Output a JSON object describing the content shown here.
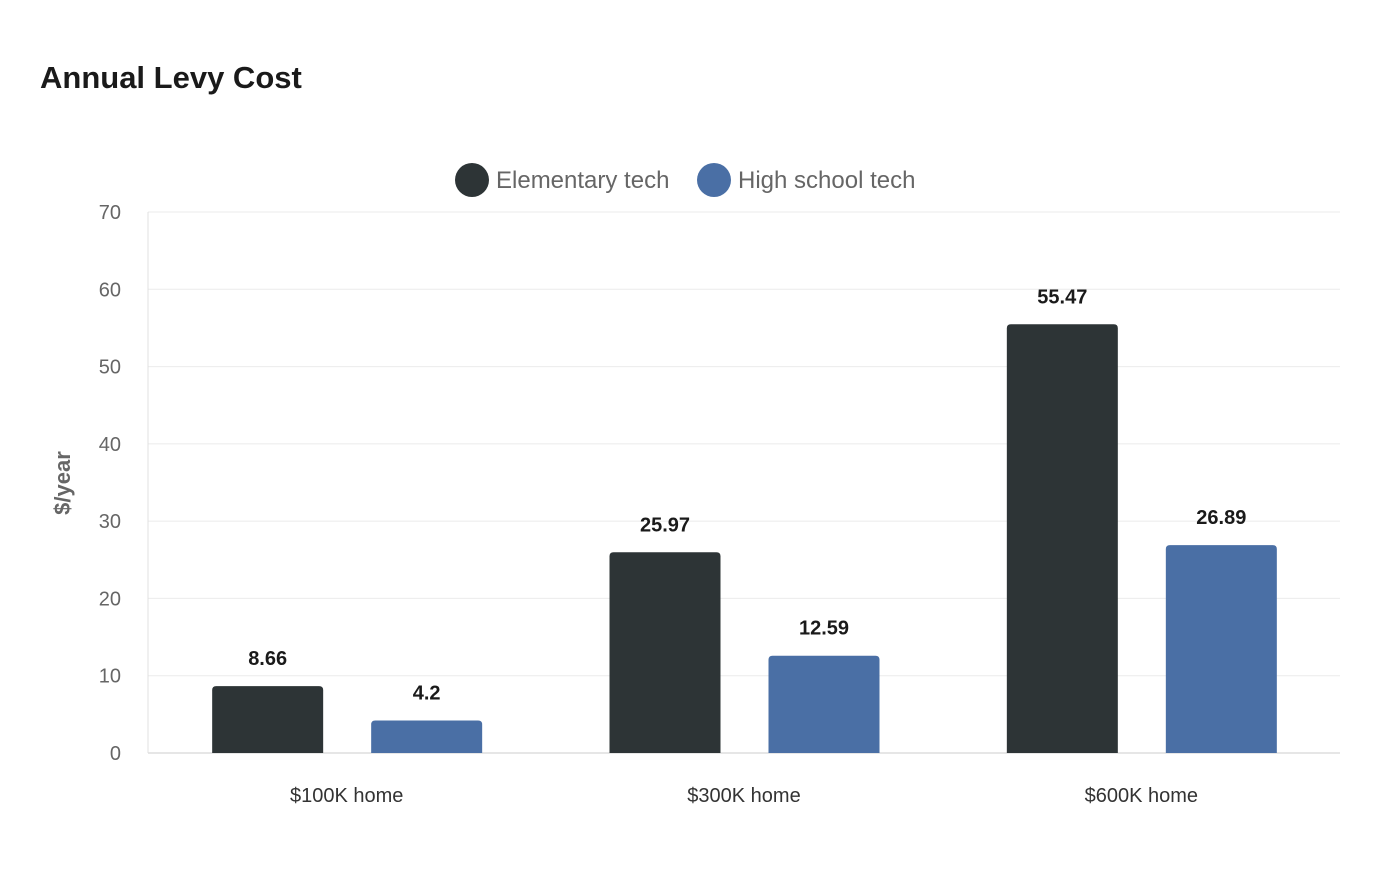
{
  "chart_data": {
    "type": "bar",
    "title": "Annual Levy Cost",
    "xlabel": "",
    "ylabel": "$/year",
    "categories": [
      "$100K home",
      "$300K home",
      "$600K home"
    ],
    "series": [
      {
        "name": "Elementary tech",
        "values": [
          8.66,
          25.97,
          55.47
        ],
        "labels": [
          "8.66",
          "25.97",
          "55.47"
        ],
        "color": "#2d3436"
      },
      {
        "name": "High school tech",
        "values": [
          4.2,
          12.59,
          26.89
        ],
        "labels": [
          "4.2",
          "12.59",
          "26.89"
        ],
        "color": "#4a6fa5"
      }
    ],
    "ylim": [
      0,
      70
    ],
    "yticks": [
      0,
      10,
      20,
      30,
      40,
      50,
      60,
      70
    ],
    "grid": true,
    "legend": "top-center"
  }
}
